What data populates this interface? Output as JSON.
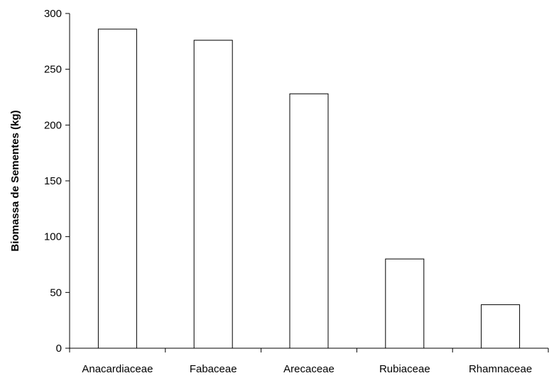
{
  "chart_data": {
    "type": "bar",
    "title": "",
    "xlabel": "",
    "ylabel": "Biomassa de Sementes (kg)",
    "categories": [
      "Anacardiaceae",
      "Fabaceae",
      "Arecaceae",
      "Rubiaceae",
      "Rhamnaceae"
    ],
    "values": [
      286,
      276,
      228,
      80,
      39
    ],
    "ylim": [
      0,
      300
    ],
    "yticks": [
      0,
      50,
      100,
      150,
      200,
      250,
      300
    ],
    "grid": false,
    "legend": "none",
    "colors": {
      "bar_fill": "#ffffff",
      "bar_stroke": "#000000",
      "axis": "#000000"
    }
  }
}
